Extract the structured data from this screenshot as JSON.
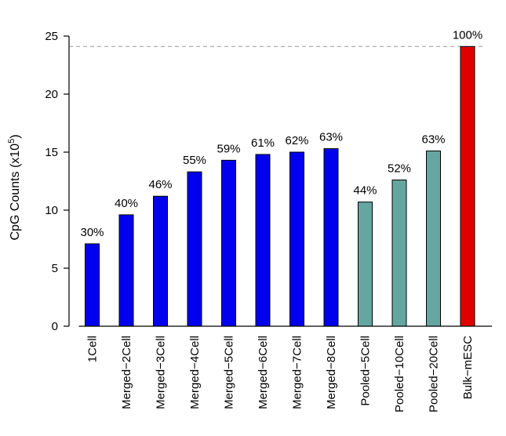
{
  "chart_data": {
    "type": "bar",
    "title": "",
    "xlabel": "",
    "ylabel": "CpG Counts (x10",
    "ylabel_superscript": "5",
    "ylabel_suffix": ")",
    "ylim": [
      0,
      25
    ],
    "yticks": [
      0,
      5,
      10,
      15,
      20,
      25
    ],
    "reference_line": 24.1,
    "categories": [
      "1Cell",
      "Merged−2Cell",
      "Merged−3Cell",
      "Merged−4Cell",
      "Merged−5Cell",
      "Merged−6Cell",
      "Merged−7Cell",
      "Merged−8Cell",
      "Pooled−5Cell",
      "Pooled−10Cell",
      "Pooled−20Cell",
      "Bulk−mESC"
    ],
    "values": [
      7.1,
      9.6,
      11.2,
      13.3,
      14.3,
      14.8,
      15.0,
      15.3,
      10.7,
      12.6,
      15.1,
      24.1
    ],
    "labels": [
      "30%",
      "40%",
      "46%",
      "55%",
      "59%",
      "61%",
      "62%",
      "63%",
      "44%",
      "52%",
      "63%",
      "100%"
    ],
    "colors": [
      "#0000ee",
      "#0000ee",
      "#0000ee",
      "#0000ee",
      "#0000ee",
      "#0000ee",
      "#0000ee",
      "#0000ee",
      "#66a6a0",
      "#66a6a0",
      "#66a6a0",
      "#e00000"
    ]
  }
}
